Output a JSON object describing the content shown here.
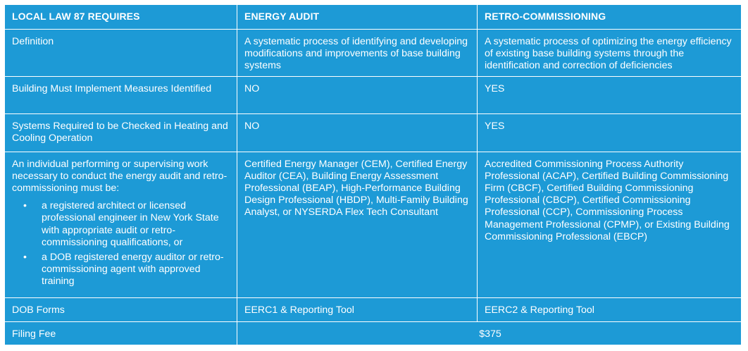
{
  "header": {
    "col1": "LOCAL LAW 87 REQUIRES",
    "col2": "ENERGY AUDIT",
    "col3": "RETRO-COMMISSIONING"
  },
  "rows": {
    "definition": {
      "label": "Definition",
      "audit": "A systematic process of identifying and developing modifications and improvements of base building systems",
      "rcx": "A systematic process of optimizing the energy efficiency of existing base building systems through the identification and correction of deficiencies"
    },
    "implement": {
      "label": "Building Must Implement Measures Identified",
      "audit": "NO",
      "rcx": "YES"
    },
    "systems": {
      "label": "Systems Required to be Checked in Heating and Cooling Operation",
      "audit": "NO",
      "rcx": "YES"
    },
    "individual": {
      "label": "An individual performing or supervising work necessary to conduct the energy audit and retro-commissioning must be:",
      "bullet_glyph": "•",
      "bullets": [
        "a registered architect or licensed professional engineer in New York State with appropriate audit or retro-commissioning qualifications, or",
        "a DOB registered energy auditor or retro-commissioning agent with approved training"
      ],
      "audit": "Certified Energy Manager (CEM), Certified Energy Auditor (CEA), Building Energy Assessment Professional (BEAP), High-Performance Building Design Professional (HBDP), Multi-Family Building Analyst, or NYSERDA Flex Tech Consultant",
      "rcx": "Accredited Commissioning Process Authority Professional (ACAP), Certified Building Commissioning Firm (CBCF), Certified Building Commissioning Professional (CBCP), Certified Commissioning Professional (CCP), Commissioning Process Management Professional (CPMP), or Existing Building Commissioning Professional (EBCP)"
    },
    "forms": {
      "label": "DOB Forms",
      "audit": "EERC1 & Reporting Tool",
      "rcx": "EERC2 & Reporting Tool"
    },
    "fee": {
      "label": "Filing Fee",
      "value": "$375"
    }
  },
  "colors": {
    "cell_background": "#1d9ad6",
    "text": "#ffffff",
    "grid_lines": "#ffffff"
  }
}
